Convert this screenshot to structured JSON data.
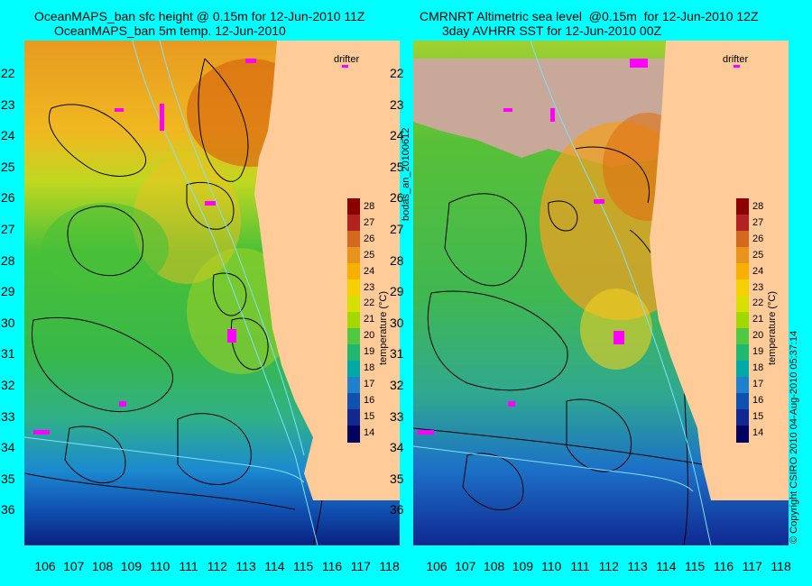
{
  "left_panel": {
    "title_line1": "OceanMAPS_ban sfc height @ 0.15m for 12-Jun-2010 11Z",
    "title_line2": "OceanMAPS_ban 5m temp. 12-Jun-2010"
  },
  "right_panel": {
    "title_line1": "CMRNRT Altimetric sea level  @0.15m  for 12-Jun-2010 12Z",
    "title_line2": "3day AVHRR SST for 12-Jun-2010 00Z"
  },
  "axes": {
    "lat_ticks": [
      "22",
      "23",
      "24",
      "25",
      "26",
      "27",
      "28",
      "29",
      "30",
      "31",
      "32",
      "33",
      "34",
      "35",
      "36"
    ],
    "lon_ticks": [
      "106",
      "107",
      "108",
      "109",
      "110",
      "111",
      "112",
      "113",
      "114",
      "115",
      "116",
      "117",
      "118"
    ]
  },
  "colorbar": {
    "title": "temperature (°C)",
    "ticks": [
      "28",
      "27",
      "26",
      "25",
      "24",
      "23",
      "22",
      "21",
      "20",
      "19",
      "18",
      "17",
      "16",
      "15",
      "14"
    ],
    "colors": [
      "#8b0000",
      "#b22222",
      "#d2691e",
      "#e8941a",
      "#f5b000",
      "#f7d000",
      "#d8e000",
      "#a0d800",
      "#50c840",
      "#20b870",
      "#00a8a8",
      "#2080d0",
      "#1050b0",
      "#102890",
      "#000060"
    ]
  },
  "drifter_label": "drifter",
  "side_text_left": "bodas_an_20100612",
  "side_text_right": "© Copyright CSIRO 2010   04-Aug-2010 05:37:14",
  "colors": {
    "background": "#00ffff",
    "land": "#ffcc99",
    "drifter": "#ff00ff",
    "contour": "#000000",
    "cloud": "#c8a898"
  }
}
